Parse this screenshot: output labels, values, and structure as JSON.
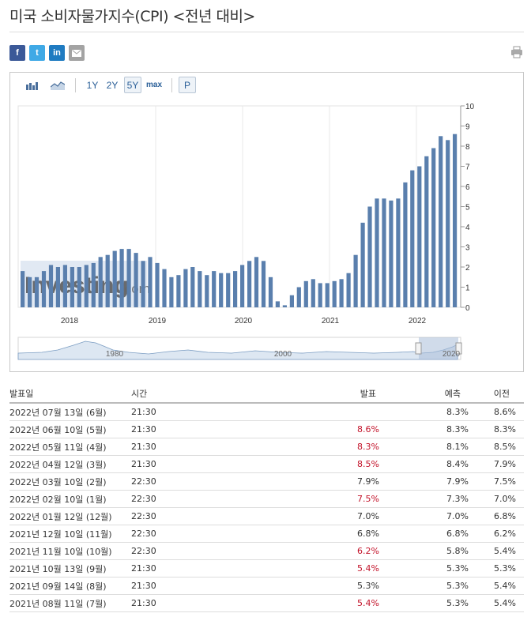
{
  "page_title": "미국 소비자물가지수(CPI) <전년 대비>",
  "share": {
    "facebook": "f",
    "twitter": "t",
    "linkedin": "in"
  },
  "toolbar": {
    "range_1y": "1Y",
    "range_2y": "2Y",
    "range_5y": "5Y",
    "range_max": "max",
    "p": "P"
  },
  "colors": {
    "bar": "#5a7fad",
    "bar_light": "#a9bed8",
    "accent_red": "#c3132a",
    "link": "#2a5f98"
  },
  "watermark": {
    "brand": "Investing",
    "suffix": ".com"
  },
  "chart_data": {
    "type": "bar",
    "ylim": [
      0,
      10
    ],
    "y_ticks": [
      "0",
      "1",
      "2",
      "3",
      "4",
      "5",
      "6",
      "7",
      "8",
      "9",
      "10"
    ],
    "x_ticks": [
      "2018",
      "2019",
      "2020",
      "2021",
      "2022"
    ],
    "values": [
      1.8,
      1.5,
      1.5,
      1.8,
      2.1,
      2.0,
      2.1,
      2.0,
      2.0,
      2.1,
      2.2,
      2.5,
      2.6,
      2.8,
      2.9,
      2.9,
      2.7,
      2.3,
      2.5,
      2.2,
      1.9,
      1.5,
      1.6,
      1.9,
      2.0,
      1.8,
      1.6,
      1.8,
      1.7,
      1.7,
      1.8,
      2.1,
      2.3,
      2.5,
      2.3,
      1.5,
      0.3,
      0.1,
      0.6,
      1.0,
      1.3,
      1.4,
      1.2,
      1.2,
      1.3,
      1.4,
      1.7,
      2.6,
      4.2,
      5.0,
      5.4,
      5.4,
      5.3,
      5.4,
      6.2,
      6.8,
      7.0,
      7.5,
      7.9,
      8.5,
      8.3,
      8.6
    ],
    "navigator": {
      "ticks": [
        "1980",
        "2000",
        "2020"
      ]
    }
  },
  "table": {
    "headers": {
      "date": "발표일",
      "time": "시간",
      "actual": "발표",
      "forecast": "예측",
      "previous": "이전"
    },
    "rows": [
      {
        "date": "2022년 07월 13일 (6월)",
        "time": "21:30",
        "actual": "",
        "forecast": "8.3%",
        "previous": "8.6%",
        "red": false
      },
      {
        "date": "2022년 06월 10일 (5월)",
        "time": "21:30",
        "actual": "8.6%",
        "forecast": "8.3%",
        "previous": "8.3%",
        "red": true
      },
      {
        "date": "2022년 05월 11일 (4월)",
        "time": "21:30",
        "actual": "8.3%",
        "forecast": "8.1%",
        "previous": "8.5%",
        "red": true
      },
      {
        "date": "2022년 04월 12일 (3월)",
        "time": "21:30",
        "actual": "8.5%",
        "forecast": "8.4%",
        "previous": "7.9%",
        "red": true
      },
      {
        "date": "2022년 03월 10일 (2월)",
        "time": "22:30",
        "actual": "7.9%",
        "forecast": "7.9%",
        "previous": "7.5%",
        "red": false
      },
      {
        "date": "2022년 02월 10일 (1월)",
        "time": "22:30",
        "actual": "7.5%",
        "forecast": "7.3%",
        "previous": "7.0%",
        "red": true
      },
      {
        "date": "2022년 01월 12일 (12월)",
        "time": "22:30",
        "actual": "7.0%",
        "forecast": "7.0%",
        "previous": "6.8%",
        "red": false
      },
      {
        "date": "2021년 12월 10일 (11월)",
        "time": "22:30",
        "actual": "6.8%",
        "forecast": "6.8%",
        "previous": "6.2%",
        "red": false
      },
      {
        "date": "2021년 11월 10일 (10월)",
        "time": "22:30",
        "actual": "6.2%",
        "forecast": "5.8%",
        "previous": "5.4%",
        "red": true
      },
      {
        "date": "2021년 10월 13일 (9월)",
        "time": "21:30",
        "actual": "5.4%",
        "forecast": "5.3%",
        "previous": "5.3%",
        "red": true
      },
      {
        "date": "2021년 09월 14일 (8월)",
        "time": "21:30",
        "actual": "5.3%",
        "forecast": "5.3%",
        "previous": "5.4%",
        "red": false
      },
      {
        "date": "2021년 08월 11일 (7월)",
        "time": "21:30",
        "actual": "5.4%",
        "forecast": "5.3%",
        "previous": "5.4%",
        "red": true
      }
    ]
  }
}
